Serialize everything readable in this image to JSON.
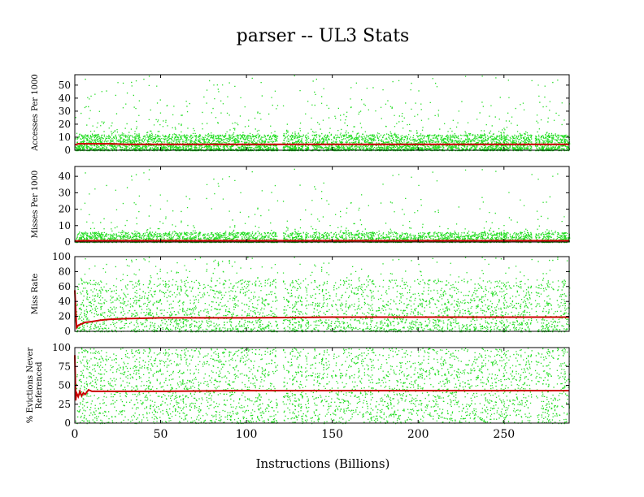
{
  "chart_data": {
    "type": "scatter",
    "title": "parser -- UL3  Stats",
    "xlabel": "Instructions (Billions)",
    "xlim": [
      0,
      288
    ],
    "xticks": [
      "0",
      "50",
      "100",
      "150",
      "200",
      "250"
    ],
    "xtick_values": [
      0,
      50,
      100,
      150,
      200,
      250
    ],
    "grid": false,
    "colors": {
      "points": "#22dd22",
      "average": "#cc0000",
      "axes": "#000000"
    },
    "panels": [
      {
        "ylabel": [
          "Accesses Per 1000"
        ],
        "ylim": [
          0,
          58
        ],
        "yticks": [
          "0",
          "10",
          "20",
          "30",
          "40",
          "50"
        ],
        "ytick_values": [
          0,
          10,
          20,
          30,
          40,
          50
        ],
        "series": [
          {
            "kind": "scatter",
            "values_summary": {
              "typical_range": [
                0,
                12
              ],
              "max": 58
            }
          },
          {
            "kind": "line",
            "x": [
              0,
              2,
              5,
              10,
              20,
              30,
              50,
              100,
              150,
              200,
              250,
              288
            ],
            "values": [
              4,
              5,
              5,
              5,
              5,
              4.5,
              4.5,
              4.5,
              4.5,
              4.5,
              4.5,
              4.5
            ]
          }
        ]
      },
      {
        "ylabel": [
          "Misses Per 1000"
        ],
        "ylim": [
          0,
          46
        ],
        "yticks": [
          "0",
          "10",
          "20",
          "30",
          "40"
        ],
        "ytick_values": [
          0,
          10,
          20,
          30,
          40
        ],
        "series": [
          {
            "kind": "scatter",
            "values_summary": {
              "typical_range": [
                0,
                6
              ],
              "max": 45
            }
          },
          {
            "kind": "line",
            "x": [
              0,
              2,
              5,
              10,
              50,
              100,
              150,
              200,
              250,
              288
            ],
            "values": [
              0.5,
              0.7,
              0.8,
              0.8,
              0.8,
              0.8,
              0.8,
              0.8,
              0.8,
              0.8
            ]
          }
        ]
      },
      {
        "ylabel": [
          "Miss Rate"
        ],
        "ylim": [
          0,
          100
        ],
        "yticks": [
          "0",
          "20",
          "40",
          "60",
          "80",
          "100"
        ],
        "ytick_values": [
          0,
          20,
          40,
          60,
          80,
          100
        ],
        "series": [
          {
            "kind": "scatter",
            "values_summary": {
              "typical_range": [
                0,
                70
              ],
              "max": 100
            }
          },
          {
            "kind": "line",
            "x": [
              0,
              1,
              2,
              4,
              6,
              10,
              15,
              20,
              30,
              50,
              80,
              100,
              150,
              200,
              250,
              288
            ],
            "values": [
              55,
              5,
              8,
              10,
              12,
              13,
              15,
              16,
              17,
              18,
              18,
              18,
              19,
              19,
              19,
              19
            ]
          }
        ]
      },
      {
        "ylabel": [
          "% Evictions Never",
          "Referenced"
        ],
        "ylim": [
          0,
          100
        ],
        "yticks": [
          "0",
          "25",
          "50",
          "75",
          "100"
        ],
        "ytick_values": [
          0,
          25,
          50,
          75,
          100
        ],
        "series": [
          {
            "kind": "scatter",
            "values_summary": {
              "typical_range": [
                0,
                100
              ],
              "max": 100
            }
          },
          {
            "kind": "line",
            "x": [
              0,
              0.5,
              1,
              2,
              3,
              4,
              5,
              6,
              8,
              10,
              20,
              50,
              100,
              150,
              200,
              250,
              288
            ],
            "values": [
              90,
              30,
              40,
              35,
              42,
              36,
              40,
              38,
              44,
              42,
              42,
              42,
              43,
              43,
              43,
              43,
              43
            ]
          }
        ]
      }
    ]
  }
}
